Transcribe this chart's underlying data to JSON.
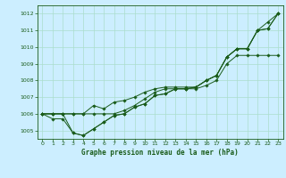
{
  "title": "Graphe pression niveau de la mer (hPa)",
  "bg_color": "#cceeff",
  "grid_color": "#aaddcc",
  "line_color": "#1a5c1a",
  "x_ticks": [
    0,
    1,
    2,
    3,
    4,
    5,
    6,
    7,
    8,
    9,
    10,
    11,
    12,
    13,
    14,
    15,
    16,
    17,
    18,
    19,
    20,
    21,
    22,
    23
  ],
  "ylim": [
    1004.5,
    1012.5
  ],
  "yticks": [
    1005,
    1006,
    1007,
    1008,
    1009,
    1010,
    1011,
    1012
  ],
  "series": [
    [
      1006.0,
      1006.0,
      1006.0,
      1006.0,
      1006.0,
      1006.0,
      1006.0,
      1006.0,
      1006.2,
      1006.5,
      1006.9,
      1007.3,
      1007.5,
      1007.5,
      1007.5,
      1007.5,
      1007.7,
      1008.0,
      1009.0,
      1009.5,
      1009.5,
      1009.5,
      1009.5,
      1009.5
    ],
    [
      1006.0,
      1006.0,
      1006.0,
      1004.85,
      1004.7,
      1005.1,
      1005.5,
      1005.9,
      1006.0,
      1006.4,
      1006.6,
      1007.1,
      1007.2,
      1007.5,
      1007.5,
      1007.6,
      1008.0,
      1008.3,
      1009.4,
      1009.9,
      1009.9,
      1011.0,
      1011.1,
      1012.0
    ],
    [
      1006.0,
      1005.7,
      1005.7,
      1004.85,
      1004.7,
      1005.1,
      1005.5,
      1005.9,
      1006.0,
      1006.4,
      1006.6,
      1007.1,
      1007.2,
      1007.5,
      1007.5,
      1007.6,
      1008.0,
      1008.3,
      1009.4,
      1009.9,
      1009.9,
      1011.0,
      1011.1,
      1012.0
    ],
    [
      1006.0,
      1006.0,
      1006.0,
      1006.0,
      1006.0,
      1006.5,
      1006.3,
      1006.7,
      1006.8,
      1007.0,
      1007.3,
      1007.5,
      1007.6,
      1007.6,
      1007.6,
      1007.6,
      1008.0,
      1008.3,
      1009.4,
      1009.9,
      1009.9,
      1011.0,
      1011.5,
      1012.0
    ]
  ]
}
